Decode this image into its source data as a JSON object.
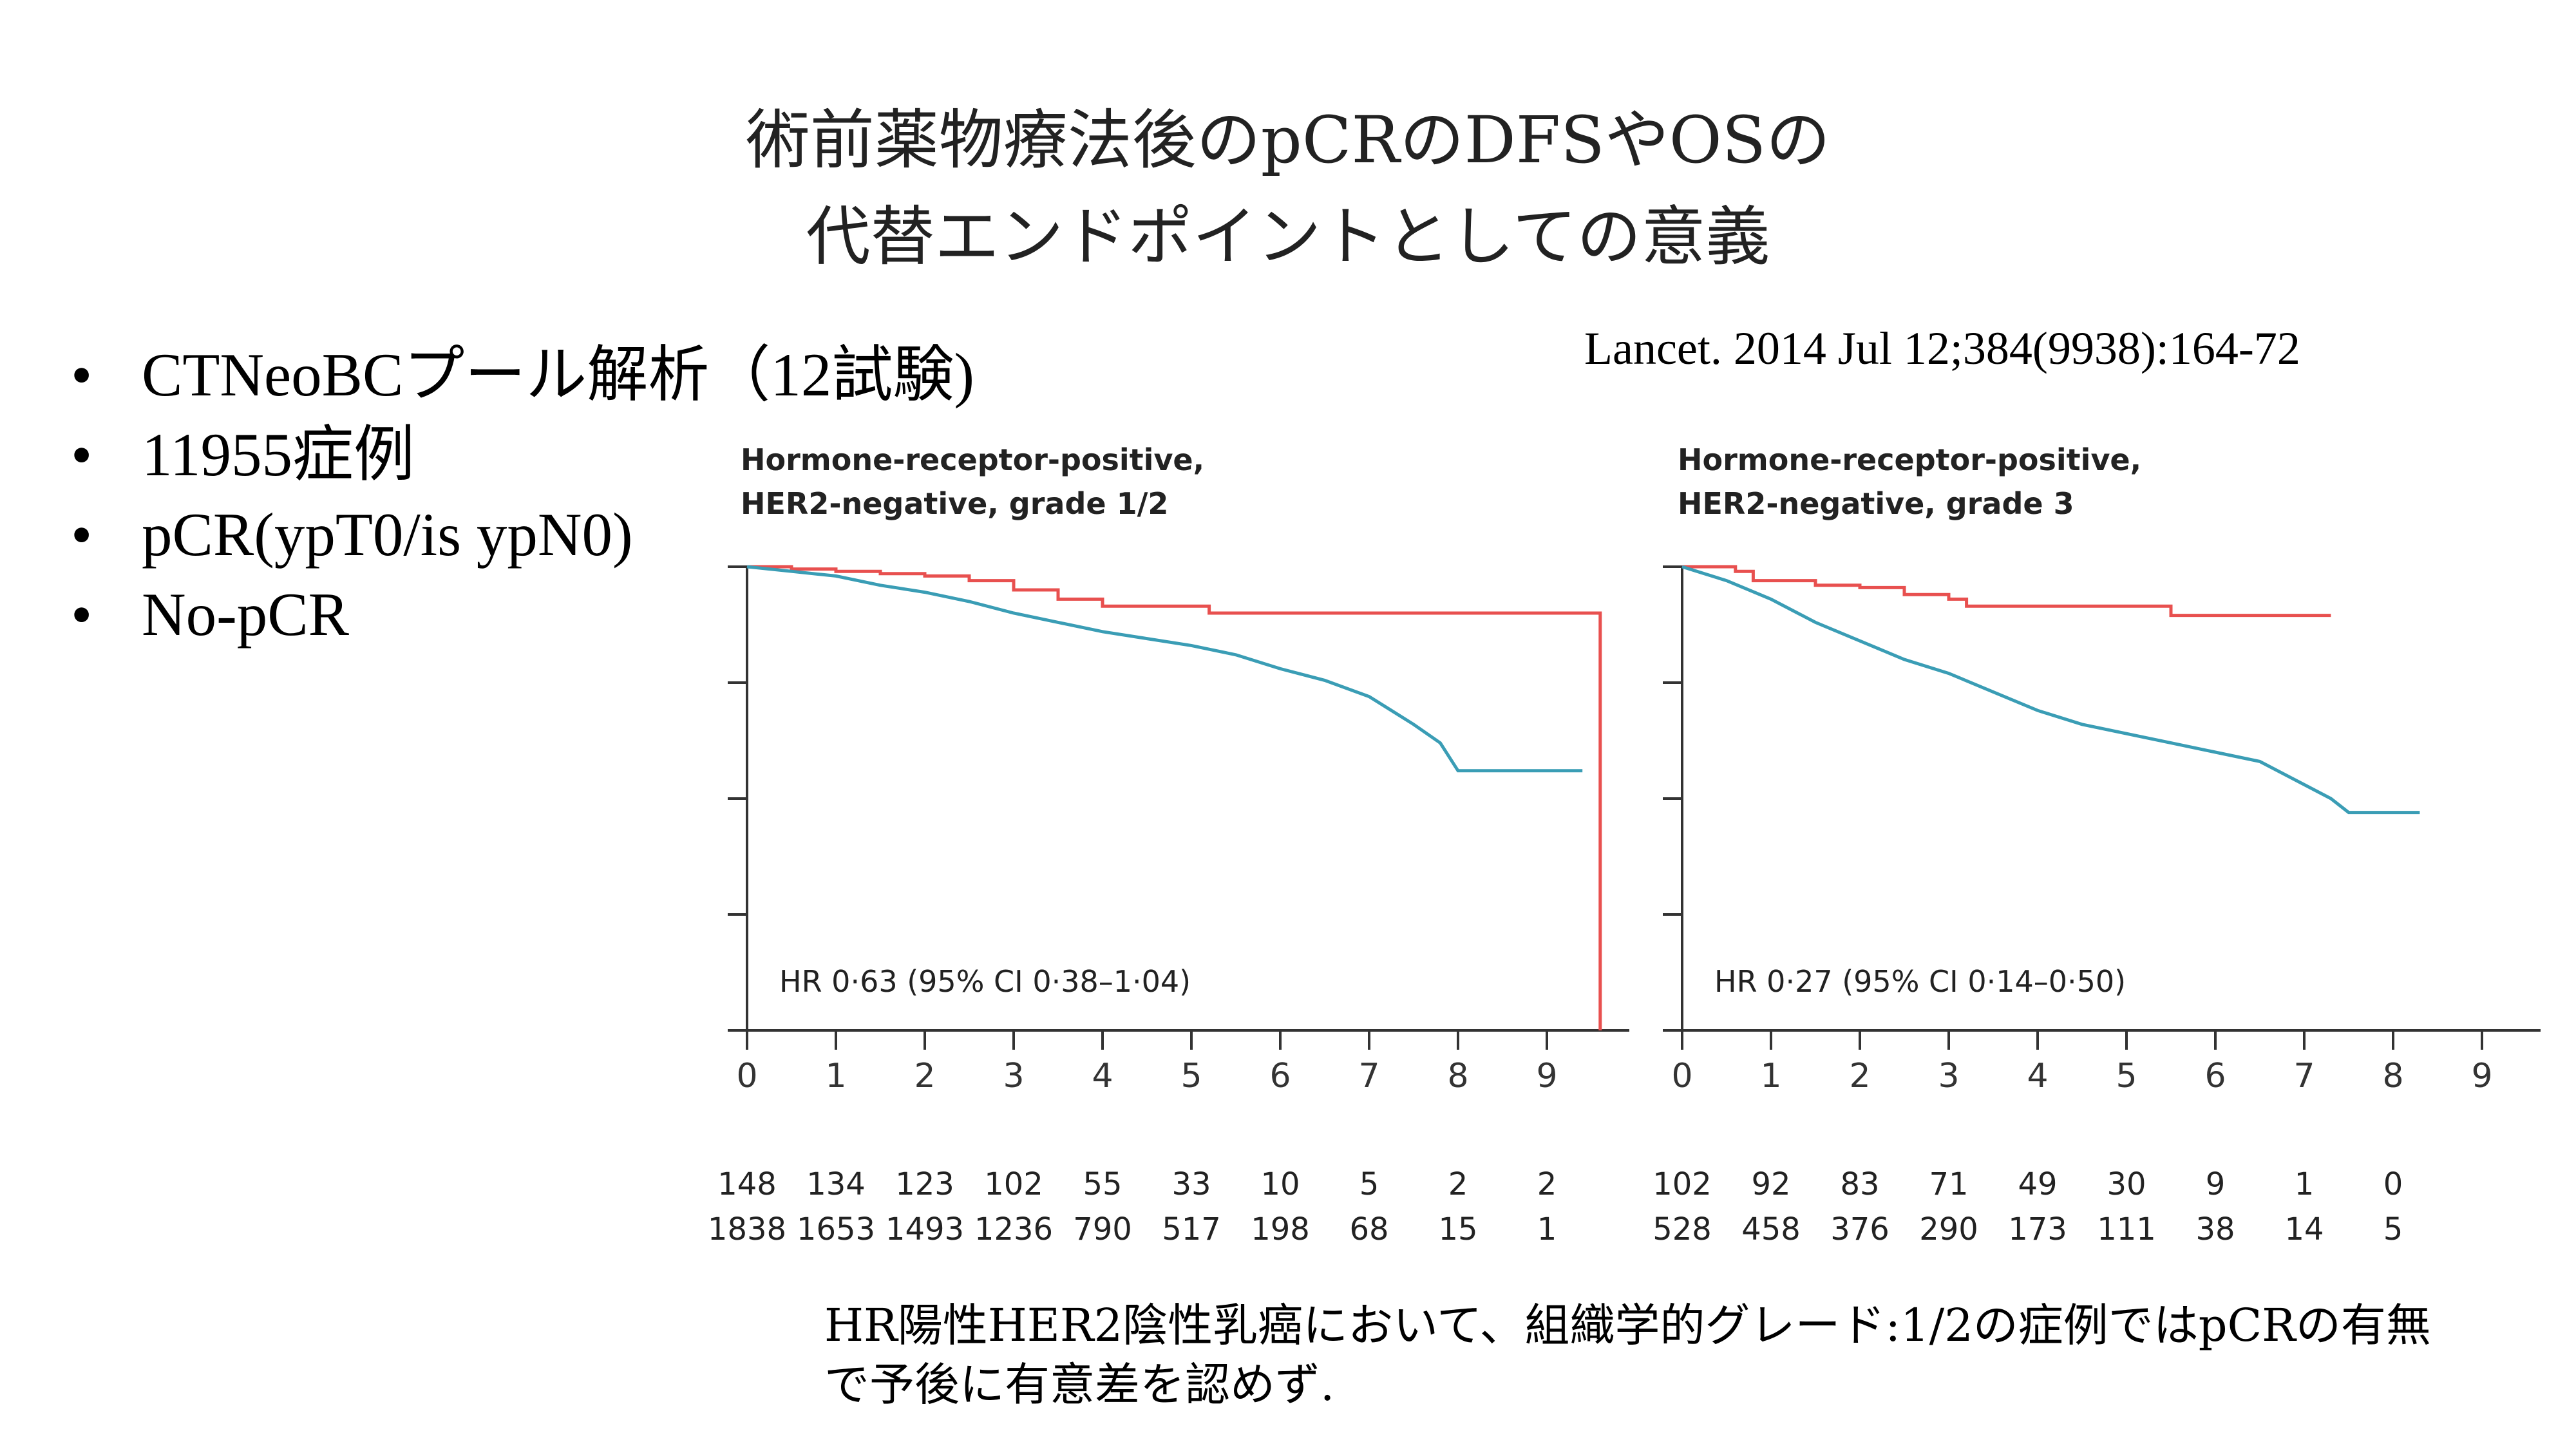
{
  "slide": {
    "title_line1": "術前薬物療法後のpCRのDFSやOSの",
    "title_line2": "代替エンドポイントとしての意義",
    "citation": "Lancet. 2014 Jul 12;384(9938):164-72",
    "bullets": [
      "CTNeoBCプール解析（12試験)",
      "11955症例",
      "pCR(ypT0/is ypN0)",
      "No-pCR"
    ],
    "conclusion": "HR陽性HER2陰性乳癌において、組織学的グレード:1/2の症例ではpCRの有無で予後に有意差を認めず."
  },
  "colors": {
    "pcr": "#e8504f",
    "no_pcr": "#3a9db5",
    "axis": "#333333"
  },
  "chart_data": [
    {
      "type": "line",
      "title_line1": "Hormone-receptor-positive,",
      "title_line2": "HER2-negative, grade 1/2",
      "hr_text": "HR 0·63 (95% CI 0·38–1·04)",
      "x_ticks": [
        "0",
        "1",
        "2",
        "3",
        "4",
        "5",
        "6",
        "7",
        "8",
        "9"
      ],
      "xlim": [
        0,
        9.5
      ],
      "ylim": [
        0,
        1
      ],
      "series": [
        {
          "key": "pcr",
          "step": true,
          "x": [
            0,
            0.5,
            1,
            1.5,
            2,
            2.5,
            3,
            3.5,
            4,
            4.5,
            5,
            5.2,
            9.6,
            9.6
          ],
          "y": [
            1,
            0.995,
            0.99,
            0.985,
            0.98,
            0.97,
            0.95,
            0.93,
            0.915,
            0.915,
            0.915,
            0.9,
            0.9,
            0
          ]
        },
        {
          "key": "no_pcr",
          "step": false,
          "x": [
            0,
            0.5,
            1,
            1.5,
            2,
            2.5,
            3,
            3.5,
            4,
            4.5,
            5,
            5.5,
            6,
            6.5,
            7,
            7.5,
            7.8,
            8,
            9.4
          ],
          "y": [
            1,
            0.99,
            0.98,
            0.96,
            0.945,
            0.925,
            0.9,
            0.88,
            0.86,
            0.845,
            0.83,
            0.81,
            0.78,
            0.755,
            0.72,
            0.66,
            0.62,
            0.56,
            0.56
          ]
        }
      ],
      "risk_table": [
        [
          "148",
          "134",
          "123",
          "102",
          "55",
          "33",
          "10",
          "5",
          "2",
          "2"
        ],
        [
          "1838",
          "1653",
          "1493",
          "1236",
          "790",
          "517",
          "198",
          "68",
          "15",
          "1"
        ]
      ]
    },
    {
      "type": "line",
      "title_line1": "Hormone-receptor-positive,",
      "title_line2": "HER2-negative, grade 3",
      "hr_text": "HR 0·27 (95% CI 0·14–0·50)",
      "x_ticks": [
        "0",
        "1",
        "2",
        "3",
        "4",
        "5",
        "6",
        "7",
        "8",
        "9"
      ],
      "xlim": [
        0,
        9.5
      ],
      "ylim": [
        0,
        1
      ],
      "series": [
        {
          "key": "pcr",
          "step": true,
          "x": [
            0,
            0.6,
            0.8,
            1.5,
            2,
            2.5,
            3,
            3.2,
            5.2,
            5.5,
            7.3
          ],
          "y": [
            1,
            0.99,
            0.97,
            0.96,
            0.955,
            0.94,
            0.93,
            0.915,
            0.915,
            0.895,
            0.895
          ]
        },
        {
          "key": "no_pcr",
          "step": false,
          "x": [
            0,
            0.5,
            1,
            1.5,
            2,
            2.5,
            3,
            3.5,
            4,
            4.5,
            5,
            5.5,
            6,
            6.5,
            7,
            7.3,
            7.5,
            8.3
          ],
          "y": [
            1,
            0.97,
            0.93,
            0.88,
            0.84,
            0.8,
            0.77,
            0.73,
            0.69,
            0.66,
            0.64,
            0.62,
            0.6,
            0.58,
            0.53,
            0.5,
            0.47,
            0.47
          ]
        }
      ],
      "risk_table": [
        [
          "102",
          "92",
          "83",
          "71",
          "49",
          "30",
          "9",
          "1",
          "0"
        ],
        [
          "528",
          "458",
          "376",
          "290",
          "173",
          "111",
          "38",
          "14",
          "5"
        ]
      ]
    }
  ]
}
